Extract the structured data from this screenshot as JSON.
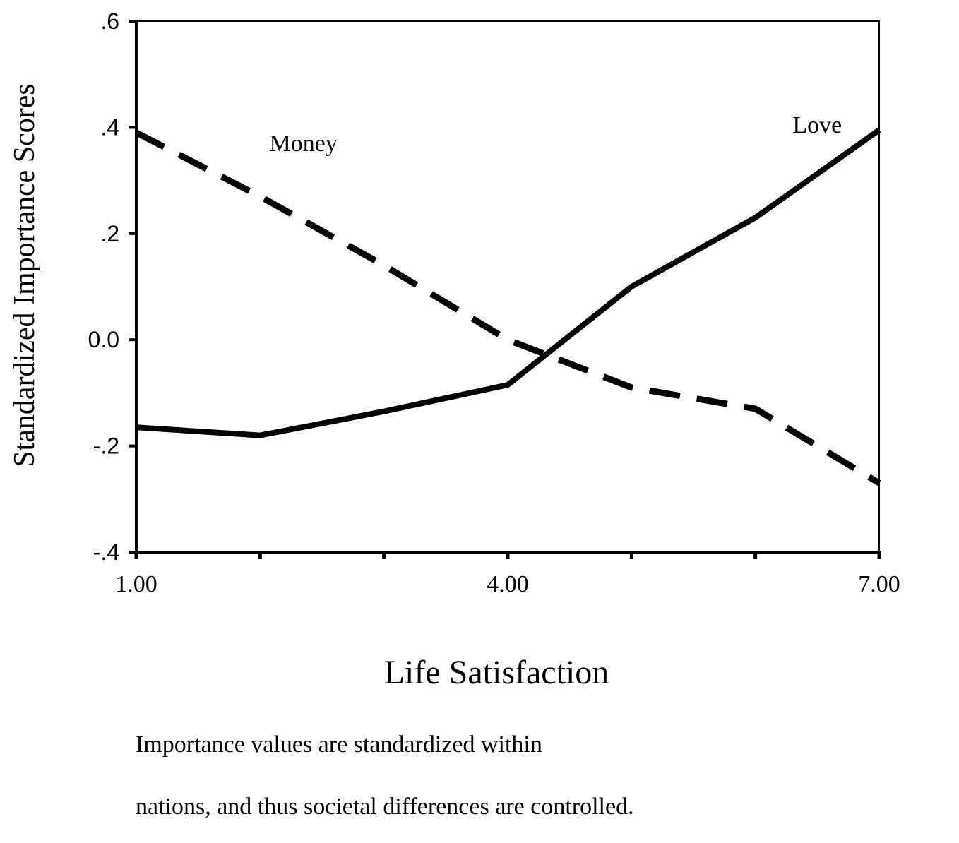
{
  "chart_data": {
    "type": "line",
    "title": "",
    "xlabel": "Life Satisfaction",
    "ylabel": "Standardized Importance Scores",
    "x": [
      1,
      2,
      3,
      4,
      5,
      6,
      7
    ],
    "xlim": [
      1,
      7
    ],
    "ylim": [
      -0.4,
      0.6
    ],
    "x_ticks": [
      1,
      2,
      3,
      4,
      5,
      6,
      7
    ],
    "x_tick_labels": [
      "1.00",
      "",
      "",
      "4.00",
      "",
      "",
      "7.00"
    ],
    "y_ticks": [
      -0.4,
      -0.2,
      0.0,
      0.2,
      0.4,
      0.6
    ],
    "y_tick_labels": [
      "-.4",
      "-.2",
      "0.0",
      ".2",
      ".4",
      ".6"
    ],
    "grid": false,
    "series": [
      {
        "name": "Money",
        "style": "dashed",
        "color": "#000000",
        "values": [
          0.39,
          0.27,
          0.14,
          0.0,
          -0.09,
          -0.13,
          -0.27
        ]
      },
      {
        "name": "Love",
        "style": "solid",
        "color": "#000000",
        "values": [
          -0.165,
          -0.18,
          -0.135,
          -0.085,
          0.1,
          0.23,
          0.395
        ]
      }
    ],
    "annotations": [
      {
        "text": "Money",
        "x": 2.35,
        "y": 0.355
      },
      {
        "text": "Love",
        "x": 6.5,
        "y": 0.39
      }
    ]
  },
  "note": {
    "line1": "Importance values are standardized within",
    "line2": "nations, and thus societal differences are controlled."
  }
}
